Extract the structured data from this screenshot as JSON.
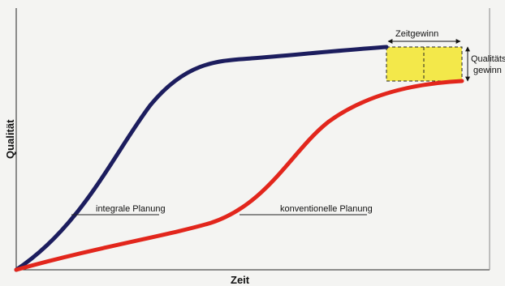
{
  "diagram": {
    "x_axis_label": "Zeit",
    "y_axis_label": "Qualität",
    "curves": [
      {
        "name": "integrale Planung",
        "color": "#1c1d5e"
      },
      {
        "name": "konventionelle Planung",
        "color": "#e2261c"
      }
    ],
    "annotations": {
      "time_gain": "Zeitgewinn",
      "quality_gain_line1": "Qualitäts-",
      "quality_gain_line2": "gewinn"
    },
    "gain_box_color": "#f3e84a"
  }
}
